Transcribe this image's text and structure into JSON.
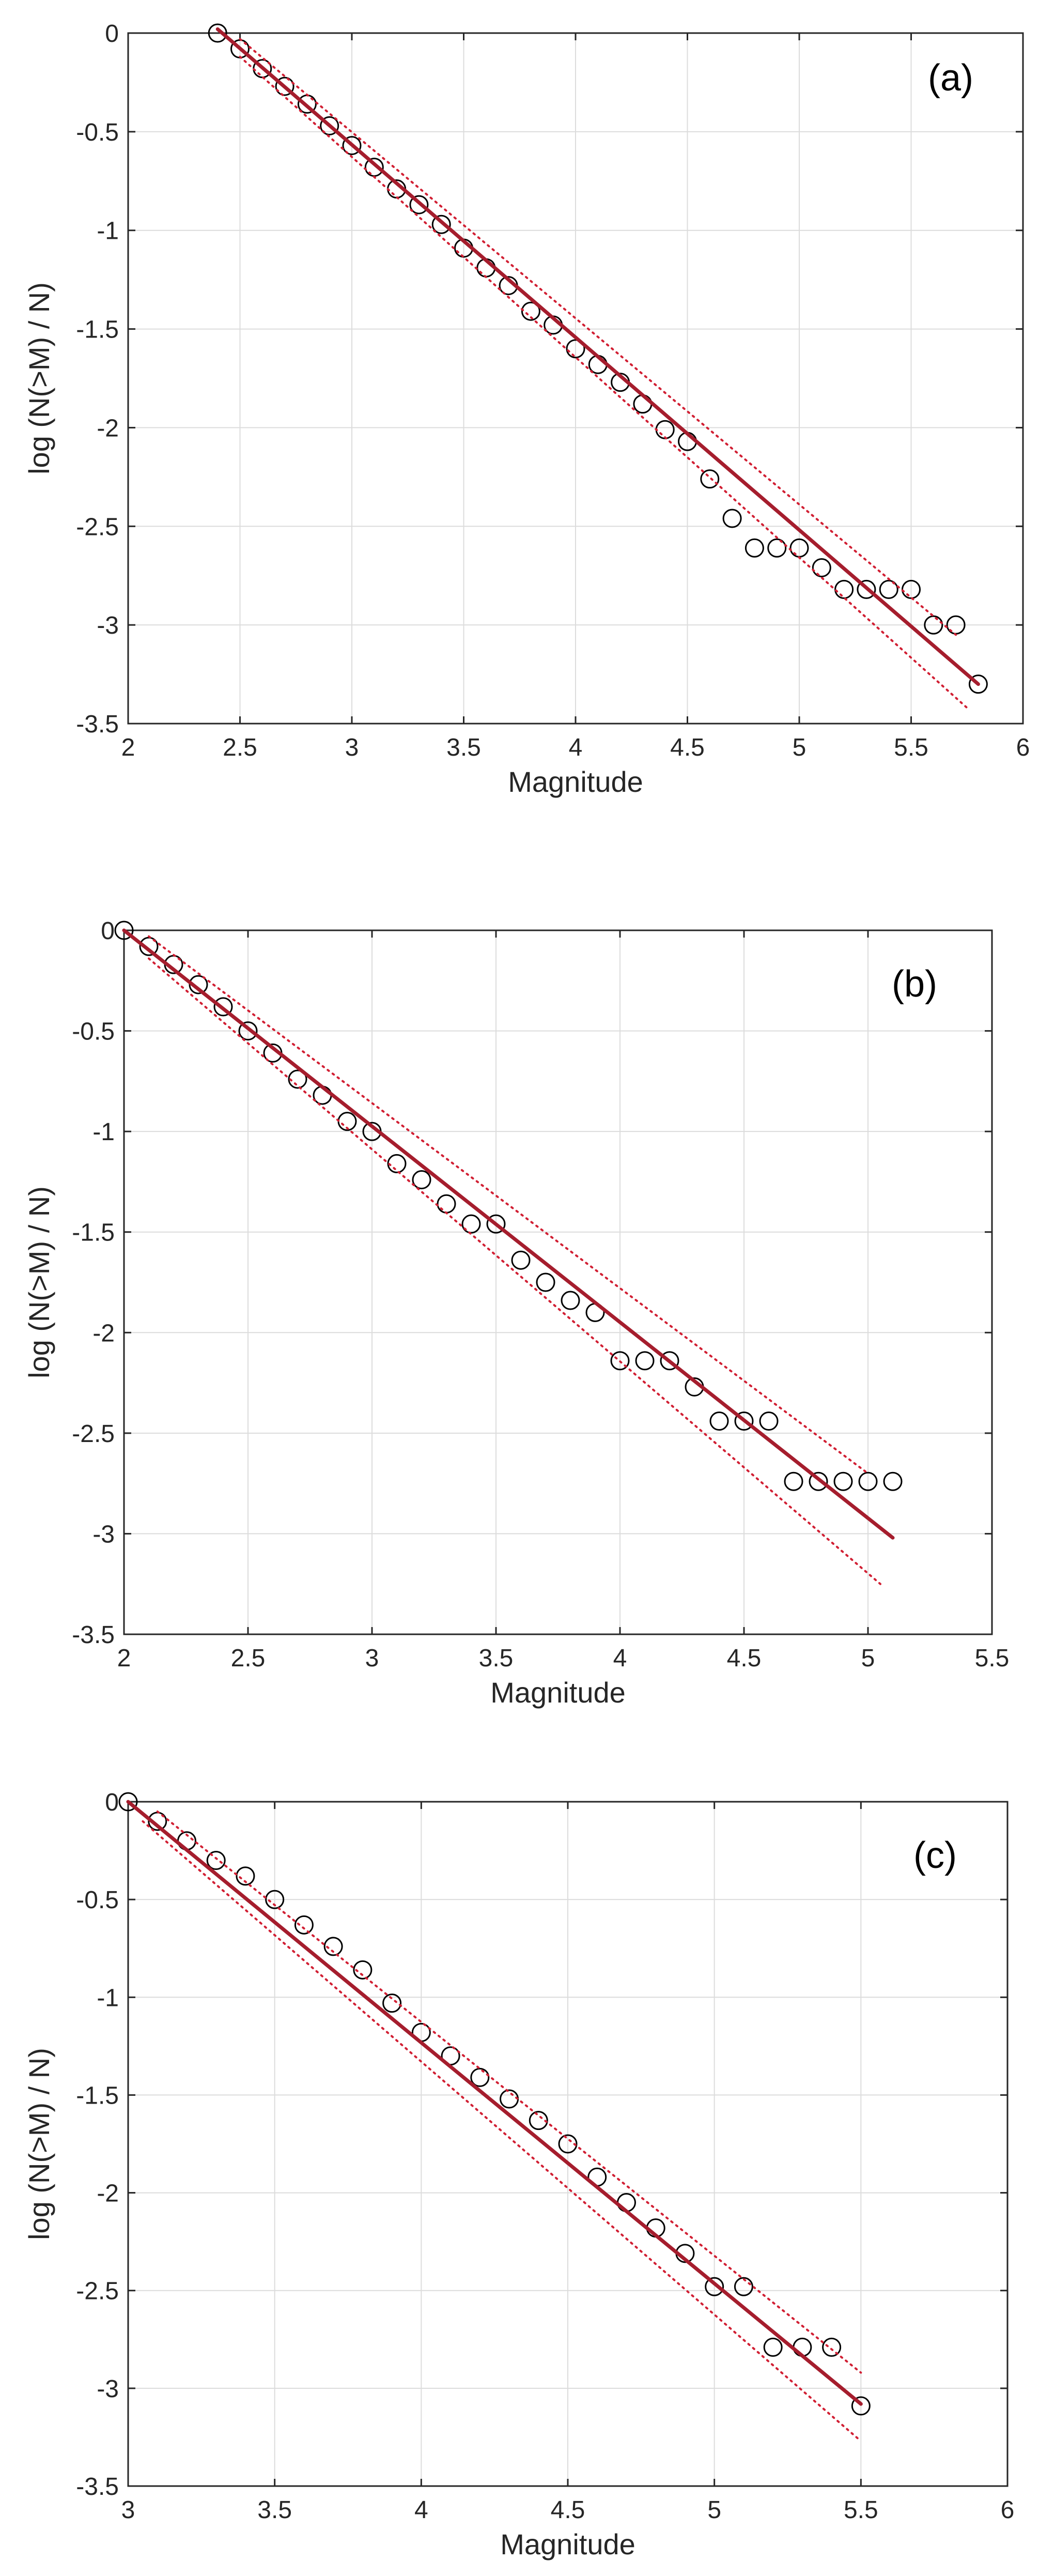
{
  "colors": {
    "fit_line": "#a51d2d",
    "bounds": "#d11f33",
    "marker": "#000000",
    "grid": "#dcdcdc",
    "axes": "#262626"
  },
  "chart_data": [
    {
      "type": "scatter",
      "panel_label": "(a)",
      "xlabel": "Magnitude",
      "ylabel": "log (N(>M) / N)",
      "xlim": [
        2,
        6
      ],
      "ylim": [
        -3.5,
        0
      ],
      "xticks": [
        2,
        2.5,
        3,
        3.5,
        4,
        4.5,
        5,
        5.5,
        6
      ],
      "xtick_labels": [
        "2",
        "2.5",
        "3",
        "3.5",
        "4",
        "4.5",
        "5",
        "5.5",
        "6"
      ],
      "yticks": [
        0,
        -0.5,
        -1,
        -1.5,
        -2,
        -2.5,
        -3,
        -3.5
      ],
      "ytick_labels": [
        "0",
        "-0.5",
        "-1",
        "-1.5",
        "-2",
        "-2.5",
        "-3",
        "-3.5"
      ],
      "grid": true,
      "series": [
        {
          "name": "observed",
          "marker": "open-circle",
          "x": [
            2.4,
            2.5,
            2.6,
            2.7,
            2.8,
            2.9,
            3.0,
            3.1,
            3.2,
            3.3,
            3.4,
            3.5,
            3.6,
            3.7,
            3.8,
            3.9,
            4.0,
            4.1,
            4.2,
            4.3,
            4.4,
            4.5,
            4.6,
            4.7,
            4.8,
            4.9,
            5.0,
            5.1,
            5.2,
            5.3,
            5.4,
            5.5,
            5.6,
            5.7,
            5.8
          ],
          "y": [
            0,
            -0.08,
            -0.18,
            -0.27,
            -0.36,
            -0.47,
            -0.57,
            -0.68,
            -0.79,
            -0.87,
            -0.97,
            -1.09,
            -1.19,
            -1.28,
            -1.41,
            -1.48,
            -1.6,
            -1.68,
            -1.77,
            -1.88,
            -2.01,
            -2.07,
            -2.26,
            -2.46,
            -2.61,
            -2.61,
            -2.61,
            -2.71,
            -2.82,
            -2.82,
            -2.82,
            -2.82,
            -3.0,
            -3.0,
            -3.3
          ]
        },
        {
          "name": "fit",
          "style": "solid",
          "x": [
            2.4,
            5.8
          ],
          "y": [
            0.02,
            -3.3
          ]
        },
        {
          "name": "upper bound",
          "style": "dotted",
          "x": [
            2.5,
            5.7
          ],
          "y": [
            -0.03,
            -3.05
          ]
        },
        {
          "name": "lower bound",
          "style": "dotted",
          "x": [
            2.5,
            5.75
          ],
          "y": [
            -0.12,
            -3.42
          ]
        }
      ]
    },
    {
      "type": "scatter",
      "panel_label": "(b)",
      "xlabel": "Magnitude",
      "ylabel": "log (N(>M) / N)",
      "xlim": [
        2,
        5.5
      ],
      "ylim": [
        -3.5,
        0
      ],
      "xticks": [
        2,
        2.5,
        3,
        3.5,
        4,
        4.5,
        5,
        5.5
      ],
      "xtick_labels": [
        "2",
        "2.5",
        "3",
        "3.5",
        "4",
        "4.5",
        "5",
        "5.5"
      ],
      "yticks": [
        0,
        -0.5,
        -1,
        -1.5,
        -2,
        -2.5,
        -3,
        -3.5
      ],
      "ytick_labels": [
        "0",
        "-0.5",
        "-1",
        "-1.5",
        "-2",
        "-2.5",
        "-3",
        "-3.5"
      ],
      "grid": true,
      "series": [
        {
          "name": "observed",
          "marker": "open-circle",
          "x": [
            2.0,
            2.1,
            2.2,
            2.3,
            2.4,
            2.5,
            2.6,
            2.7,
            2.8,
            2.9,
            3.0,
            3.1,
            3.2,
            3.3,
            3.4,
            3.5,
            3.6,
            3.7,
            3.8,
            3.9,
            4.0,
            4.1,
            4.2,
            4.3,
            4.4,
            4.5,
            4.6,
            4.7,
            4.8,
            4.9,
            5.0,
            5.1
          ],
          "y": [
            0,
            -0.08,
            -0.17,
            -0.27,
            -0.38,
            -0.5,
            -0.61,
            -0.74,
            -0.82,
            -0.95,
            -1.0,
            -1.16,
            -1.24,
            -1.36,
            -1.46,
            -1.46,
            -1.64,
            -1.75,
            -1.84,
            -1.9,
            -2.14,
            -2.14,
            -2.14,
            -2.27,
            -2.44,
            -2.44,
            -2.44,
            -2.74,
            -2.74,
            -2.74,
            -2.74,
            -2.74
          ]
        },
        {
          "name": "fit",
          "style": "solid",
          "x": [
            2.0,
            5.1
          ],
          "y": [
            0,
            -3.02
          ]
        },
        {
          "name": "upper bound",
          "style": "dotted",
          "x": [
            2.1,
            5.0
          ],
          "y": [
            -0.03,
            -2.7
          ]
        },
        {
          "name": "lower bound",
          "style": "dotted",
          "x": [
            2.1,
            5.05
          ],
          "y": [
            -0.14,
            -3.25
          ]
        }
      ]
    },
    {
      "type": "scatter",
      "panel_label": "(c)",
      "xlabel": "Magnitude",
      "ylabel": "log (N(>M) / N)",
      "xlim": [
        3,
        6
      ],
      "ylim": [
        -3.5,
        0
      ],
      "xticks": [
        3,
        3.5,
        4,
        4.5,
        5,
        5.5,
        6
      ],
      "xtick_labels": [
        "3",
        "3.5",
        "4",
        "4.5",
        "5",
        "5.5",
        "6"
      ],
      "yticks": [
        0,
        -0.5,
        -1,
        -1.5,
        -2,
        -2.5,
        -3,
        -3.5
      ],
      "ytick_labels": [
        "0",
        "-0.5",
        "-1",
        "-1.5",
        "-2",
        "-2.5",
        "-3",
        "-3.5"
      ],
      "grid": true,
      "series": [
        {
          "name": "observed",
          "marker": "open-circle",
          "x": [
            3.0,
            3.1,
            3.2,
            3.3,
            3.4,
            3.5,
            3.6,
            3.7,
            3.8,
            3.9,
            4.0,
            4.1,
            4.2,
            4.3,
            4.4,
            4.5,
            4.6,
            4.7,
            4.8,
            4.9,
            5.0,
            5.1,
            5.2,
            5.3,
            5.4,
            5.5
          ],
          "y": [
            0,
            -0.1,
            -0.2,
            -0.3,
            -0.38,
            -0.5,
            -0.63,
            -0.74,
            -0.86,
            -1.03,
            -1.18,
            -1.3,
            -1.41,
            -1.52,
            -1.63,
            -1.75,
            -1.92,
            -2.05,
            -2.18,
            -2.31,
            -2.48,
            -2.48,
            -2.79,
            -2.79,
            -2.79,
            -3.09
          ]
        },
        {
          "name": "fit",
          "style": "solid",
          "x": [
            3.0,
            5.5
          ],
          "y": [
            0,
            -3.08
          ]
        },
        {
          "name": "upper bound",
          "style": "dotted",
          "x": [
            3.1,
            5.5
          ],
          "y": [
            -0.05,
            -2.92
          ]
        },
        {
          "name": "lower bound",
          "style": "dotted",
          "x": [
            3.05,
            5.5
          ],
          "y": [
            -0.1,
            -3.27
          ]
        }
      ]
    }
  ]
}
